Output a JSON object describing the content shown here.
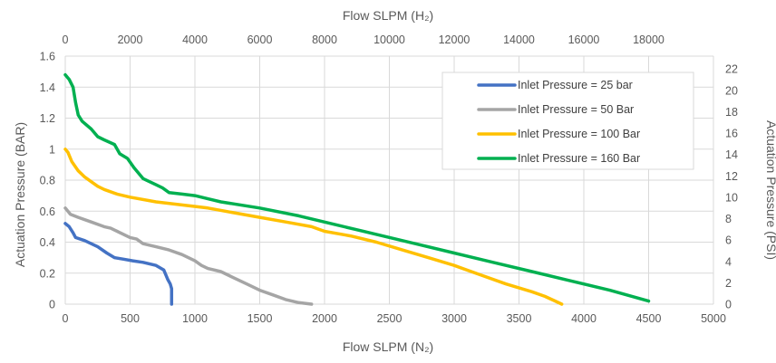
{
  "chart_data": {
    "type": "line",
    "xlabel": "Flow SLPM (N₂)",
    "x2label": "Flow SLPM (H₂)",
    "ylabel": "Actuation Pressure (BAR)",
    "y2label": "Actuation Pressure (PSI)",
    "xlim": [
      0,
      5000
    ],
    "x2lim": [
      0,
      20000
    ],
    "ylim": [
      0,
      1.6
    ],
    "y2lim": [
      0,
      23.2
    ],
    "xticks": [
      0,
      500,
      1000,
      1500,
      2000,
      2500,
      3000,
      3500,
      4000,
      4500,
      5000
    ],
    "xtick_labels": [
      "0",
      "500",
      "1000",
      "1500",
      "2000",
      "2500",
      "3000",
      "3500",
      "4000",
      "4500",
      "5000"
    ],
    "x2ticks": [
      0,
      2000,
      4000,
      6000,
      8000,
      10000,
      12000,
      14000,
      16000,
      18000
    ],
    "x2tick_labels": [
      "0",
      "2000",
      "4000",
      "6000",
      "8000",
      "10000",
      "12000",
      "14000",
      "16000",
      "18000"
    ],
    "yticks": [
      0,
      0.2,
      0.4,
      0.6,
      0.8,
      1.0,
      1.2,
      1.4,
      1.6
    ],
    "ytick_labels": [
      "0",
      "0.2",
      "0.4",
      "0.6",
      "0.8",
      "1",
      "1.2",
      "1.4",
      "1.6"
    ],
    "y2ticks": [
      0,
      2,
      4,
      6,
      8,
      10,
      12,
      14,
      16,
      18,
      20,
      22
    ],
    "y2tick_labels": [
      "0",
      "2",
      "4",
      "6",
      "8",
      "10",
      "12",
      "14",
      "16",
      "18",
      "20",
      "22"
    ],
    "grid": true,
    "legend_position": "top-right",
    "series": [
      {
        "name": "Inlet Pressure = 25 bar",
        "color": "#4472C4",
        "points": [
          [
            0,
            0.52
          ],
          [
            30,
            0.5
          ],
          [
            60,
            0.46
          ],
          [
            80,
            0.43
          ],
          [
            150,
            0.41
          ],
          [
            250,
            0.37
          ],
          [
            320,
            0.33
          ],
          [
            380,
            0.3
          ],
          [
            450,
            0.29
          ],
          [
            520,
            0.28
          ],
          [
            600,
            0.27
          ],
          [
            700,
            0.25
          ],
          [
            760,
            0.22
          ],
          [
            790,
            0.16
          ],
          [
            810,
            0.13
          ],
          [
            820,
            0.1
          ],
          [
            820,
            0.0
          ]
        ]
      },
      {
        "name": "Inlet Pressure = 50 Bar",
        "color": "#A5A5A5",
        "points": [
          [
            0,
            0.62
          ],
          [
            40,
            0.58
          ],
          [
            100,
            0.56
          ],
          [
            200,
            0.53
          ],
          [
            300,
            0.5
          ],
          [
            350,
            0.49
          ],
          [
            400,
            0.47
          ],
          [
            500,
            0.43
          ],
          [
            550,
            0.42
          ],
          [
            600,
            0.39
          ],
          [
            700,
            0.37
          ],
          [
            800,
            0.35
          ],
          [
            900,
            0.32
          ],
          [
            1000,
            0.28
          ],
          [
            1050,
            0.25
          ],
          [
            1100,
            0.23
          ],
          [
            1200,
            0.21
          ],
          [
            1300,
            0.17
          ],
          [
            1400,
            0.13
          ],
          [
            1500,
            0.09
          ],
          [
            1600,
            0.06
          ],
          [
            1700,
            0.03
          ],
          [
            1800,
            0.01
          ],
          [
            1900,
            0.0
          ]
        ]
      },
      {
        "name": "Inlet Pressure = 100 Bar",
        "color": "#FFC000",
        "points": [
          [
            0,
            1.0
          ],
          [
            20,
            0.98
          ],
          [
            50,
            0.92
          ],
          [
            100,
            0.86
          ],
          [
            150,
            0.82
          ],
          [
            200,
            0.79
          ],
          [
            250,
            0.76
          ],
          [
            300,
            0.74
          ],
          [
            400,
            0.71
          ],
          [
            500,
            0.69
          ],
          [
            700,
            0.66
          ],
          [
            900,
            0.64
          ],
          [
            1100,
            0.62
          ],
          [
            1300,
            0.59
          ],
          [
            1500,
            0.56
          ],
          [
            1700,
            0.53
          ],
          [
            1900,
            0.5
          ],
          [
            2000,
            0.47
          ],
          [
            2200,
            0.44
          ],
          [
            2400,
            0.4
          ],
          [
            2600,
            0.35
          ],
          [
            2800,
            0.3
          ],
          [
            3000,
            0.25
          ],
          [
            3200,
            0.19
          ],
          [
            3400,
            0.13
          ],
          [
            3600,
            0.08
          ],
          [
            3700,
            0.05
          ],
          [
            3780,
            0.02
          ],
          [
            3830,
            0.0
          ]
        ]
      },
      {
        "name": "Inlet Pressure = 160 Bar",
        "color": "#00B050",
        "points": [
          [
            0,
            1.48
          ],
          [
            30,
            1.45
          ],
          [
            60,
            1.4
          ],
          [
            80,
            1.3
          ],
          [
            100,
            1.22
          ],
          [
            130,
            1.18
          ],
          [
            200,
            1.13
          ],
          [
            250,
            1.08
          ],
          [
            300,
            1.06
          ],
          [
            380,
            1.03
          ],
          [
            420,
            0.97
          ],
          [
            480,
            0.94
          ],
          [
            530,
            0.88
          ],
          [
            600,
            0.81
          ],
          [
            700,
            0.77
          ],
          [
            750,
            0.75
          ],
          [
            800,
            0.72
          ],
          [
            900,
            0.71
          ],
          [
            1000,
            0.7
          ],
          [
            1100,
            0.68
          ],
          [
            1200,
            0.66
          ],
          [
            1500,
            0.62
          ],
          [
            1800,
            0.57
          ],
          [
            2100,
            0.51
          ],
          [
            2400,
            0.45
          ],
          [
            2700,
            0.39
          ],
          [
            3000,
            0.33
          ],
          [
            3300,
            0.27
          ],
          [
            3600,
            0.21
          ],
          [
            3900,
            0.15
          ],
          [
            4200,
            0.09
          ],
          [
            4500,
            0.02
          ]
        ]
      }
    ]
  }
}
